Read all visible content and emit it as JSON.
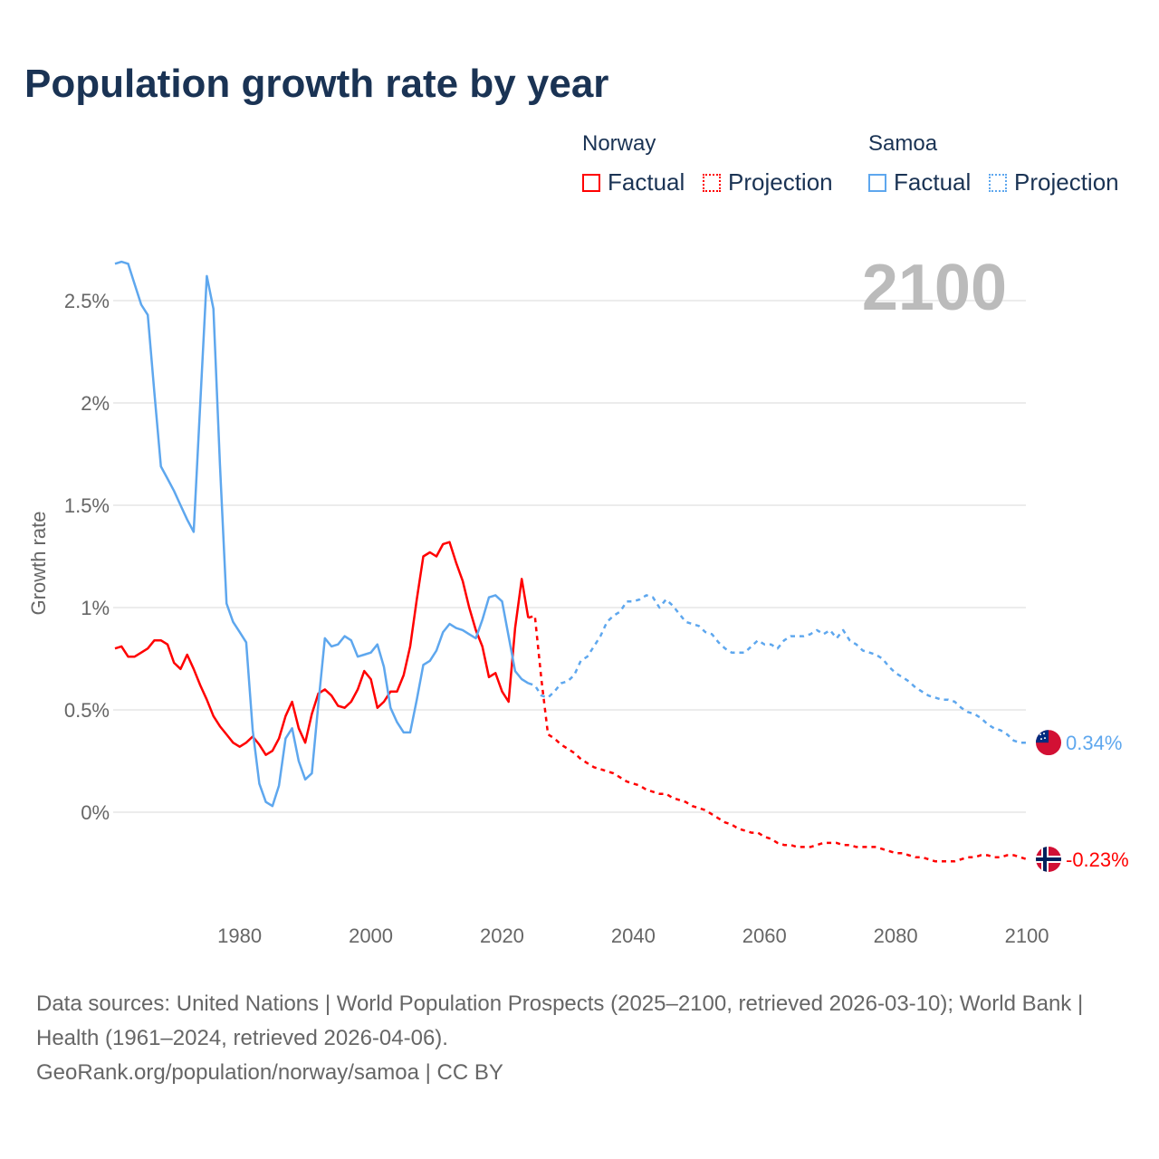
{
  "title": "Population growth rate by year",
  "legend": {
    "groups": [
      {
        "name": "Norway",
        "factual": "Factual",
        "projection": "Projection",
        "color": "#ff0000"
      },
      {
        "name": "Samoa",
        "factual": "Factual",
        "projection": "Projection",
        "color": "#5ea7ee"
      }
    ]
  },
  "year_label": "2100",
  "footer": {
    "line1": "Data sources: United Nations | World Population Prospects (2025–2100, retrieved 2026-03-10); World Bank | Health (1961–2024, retrieved 2026-04-06).",
    "line2": "GeoRank.org/population/norway/samoa | CC BY"
  },
  "chart_data": {
    "type": "line",
    "title": "Population growth rate by year",
    "xlabel": "",
    "ylabel": "Growth rate",
    "xlim": [
      1961,
      2100
    ],
    "ylim": [
      -0.45,
      2.75
    ],
    "xticks": [
      1980,
      2000,
      2020,
      2040,
      2060,
      2080,
      2100
    ],
    "yticks": [
      0,
      0.5,
      1,
      1.5,
      2,
      2.5
    ],
    "ytick_labels": [
      "0%",
      "0.5%",
      "1%",
      "1.5%",
      "2%",
      "2.5%"
    ],
    "grid": true,
    "series": [
      {
        "name": "Norway Factual",
        "color": "#ff0000",
        "dashed": false,
        "x_start": 1961,
        "values": [
          0.8,
          0.81,
          0.76,
          0.76,
          0.78,
          0.8,
          0.84,
          0.84,
          0.82,
          0.73,
          0.7,
          0.77,
          0.7,
          0.62,
          0.55,
          0.47,
          0.42,
          0.38,
          0.34,
          0.32,
          0.34,
          0.37,
          0.33,
          0.28,
          0.3,
          0.36,
          0.47,
          0.54,
          0.41,
          0.34,
          0.48,
          0.58,
          0.6,
          0.57,
          0.52,
          0.51,
          0.54,
          0.6,
          0.69,
          0.65,
          0.51,
          0.54,
          0.59,
          0.59,
          0.67,
          0.81,
          1.04,
          1.25,
          1.27,
          1.25,
          1.31,
          1.32,
          1.22,
          1.13,
          1.0,
          0.89,
          0.81,
          0.66,
          0.68,
          0.59,
          0.54,
          0.9,
          1.14,
          0.95
        ]
      },
      {
        "name": "Norway Projection",
        "color": "#ff0000",
        "dashed": true,
        "x_start": 2024,
        "values": [
          0.95,
          0.96,
          0.65,
          0.38,
          0.36,
          0.33,
          0.31,
          0.29,
          0.26,
          0.24,
          0.22,
          0.21,
          0.2,
          0.19,
          0.17,
          0.15,
          0.14,
          0.13,
          0.11,
          0.1,
          0.09,
          0.09,
          0.07,
          0.06,
          0.05,
          0.03,
          0.02,
          0.01,
          -0.01,
          -0.03,
          -0.05,
          -0.06,
          -0.08,
          -0.09,
          -0.1,
          -0.1,
          -0.12,
          -0.13,
          -0.15,
          -0.16,
          -0.16,
          -0.17,
          -0.17,
          -0.17,
          -0.16,
          -0.15,
          -0.15,
          -0.15,
          -0.16,
          -0.16,
          -0.17,
          -0.17,
          -0.17,
          -0.17,
          -0.18,
          -0.19,
          -0.2,
          -0.2,
          -0.21,
          -0.22,
          -0.22,
          -0.23,
          -0.24,
          -0.24,
          -0.24,
          -0.24,
          -0.23,
          -0.22,
          -0.22,
          -0.21,
          -0.21,
          -0.22,
          -0.22,
          -0.21,
          -0.21,
          -0.22,
          -0.23
        ]
      },
      {
        "name": "Samoa Factual",
        "color": "#5ea7ee",
        "dashed": false,
        "x_start": 1961,
        "values": [
          2.68,
          2.69,
          2.68,
          2.58,
          2.48,
          2.43,
          2.05,
          1.69,
          1.63,
          1.57,
          1.5,
          1.43,
          1.37,
          2.0,
          2.62,
          2.46,
          1.7,
          1.02,
          0.93,
          0.88,
          0.83,
          0.4,
          0.14,
          0.05,
          0.03,
          0.13,
          0.36,
          0.41,
          0.25,
          0.16,
          0.19,
          0.53,
          0.85,
          0.81,
          0.82,
          0.86,
          0.84,
          0.76,
          0.77,
          0.78,
          0.82,
          0.71,
          0.51,
          0.44,
          0.39,
          0.39,
          0.55,
          0.72,
          0.74,
          0.79,
          0.88,
          0.92,
          0.9,
          0.89,
          0.87,
          0.85,
          0.94,
          1.05,
          1.06,
          1.03,
          0.86,
          0.69,
          0.65,
          0.63
        ]
      },
      {
        "name": "Samoa Projection",
        "color": "#5ea7ee",
        "dashed": true,
        "x_start": 2024,
        "values": [
          0.63,
          0.62,
          0.57,
          0.56,
          0.59,
          0.63,
          0.64,
          0.67,
          0.74,
          0.76,
          0.81,
          0.86,
          0.93,
          0.96,
          0.98,
          1.03,
          1.03,
          1.04,
          1.06,
          1.05,
          1.0,
          1.04,
          1.01,
          0.97,
          0.93,
          0.92,
          0.91,
          0.88,
          0.87,
          0.83,
          0.8,
          0.78,
          0.78,
          0.78,
          0.81,
          0.84,
          0.82,
          0.82,
          0.8,
          0.84,
          0.86,
          0.86,
          0.86,
          0.87,
          0.89,
          0.87,
          0.89,
          0.85,
          0.89,
          0.84,
          0.82,
          0.79,
          0.78,
          0.77,
          0.75,
          0.71,
          0.68,
          0.66,
          0.64,
          0.61,
          0.59,
          0.57,
          0.56,
          0.55,
          0.55,
          0.54,
          0.51,
          0.49,
          0.48,
          0.46,
          0.43,
          0.41,
          0.4,
          0.38,
          0.35,
          0.34,
          0.34
        ]
      }
    ],
    "end_labels": [
      {
        "country": "Samoa",
        "text": "0.34%",
        "value": 0.34,
        "color": "#5ea7ee"
      },
      {
        "country": "Norway",
        "text": "-0.23%",
        "value": -0.23,
        "color": "#ff0000"
      }
    ]
  }
}
